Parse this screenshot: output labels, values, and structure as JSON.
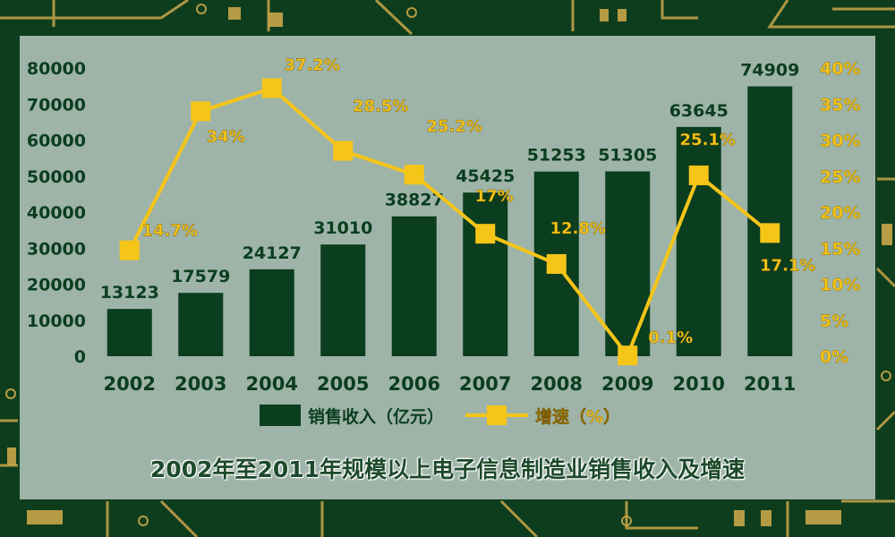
{
  "chart_data": {
    "type": "bar",
    "title": "2002年至2011年规模以上电子信息制造业销售收入及增速",
    "categories": [
      "2002",
      "2003",
      "2004",
      "2005",
      "2006",
      "2007",
      "2008",
      "2009",
      "2010",
      "2011"
    ],
    "series": [
      {
        "name": "销售收入（亿元）",
        "type": "bar",
        "axis": "left",
        "color": "#0b3d1f",
        "values": [
          13123,
          17579,
          24127,
          31010,
          38827,
          45425,
          51253,
          51305,
          63645,
          74909
        ],
        "labels": [
          "13123",
          "17579",
          "24127",
          "31010",
          "38827",
          "45425",
          "51253",
          "51305",
          "63645",
          "74909"
        ]
      },
      {
        "name": "增速（%）",
        "type": "line",
        "axis": "right",
        "color": "#f5c518",
        "values": [
          14.7,
          34,
          37.2,
          28.5,
          25.2,
          17,
          12.8,
          0.1,
          25.1,
          17.1
        ],
        "labels": [
          "14.7%",
          "34%",
          "37.2%",
          "28.5%",
          "25.2%",
          "17%",
          "12.8%",
          "0.1%",
          "25.1%",
          "17.1%"
        ]
      }
    ],
    "y_left": {
      "ylim": [
        0,
        80000
      ],
      "ticks": [
        "0",
        "10000",
        "20000",
        "30000",
        "40000",
        "50000",
        "60000",
        "70000",
        "80000"
      ]
    },
    "y_right": {
      "ylim": [
        0,
        40
      ],
      "ticks": [
        "0%",
        "5%",
        "10%",
        "15%",
        "20%",
        "25%",
        "30%",
        "35%",
        "40%"
      ]
    },
    "grid": false,
    "legend_position": "bottom"
  }
}
